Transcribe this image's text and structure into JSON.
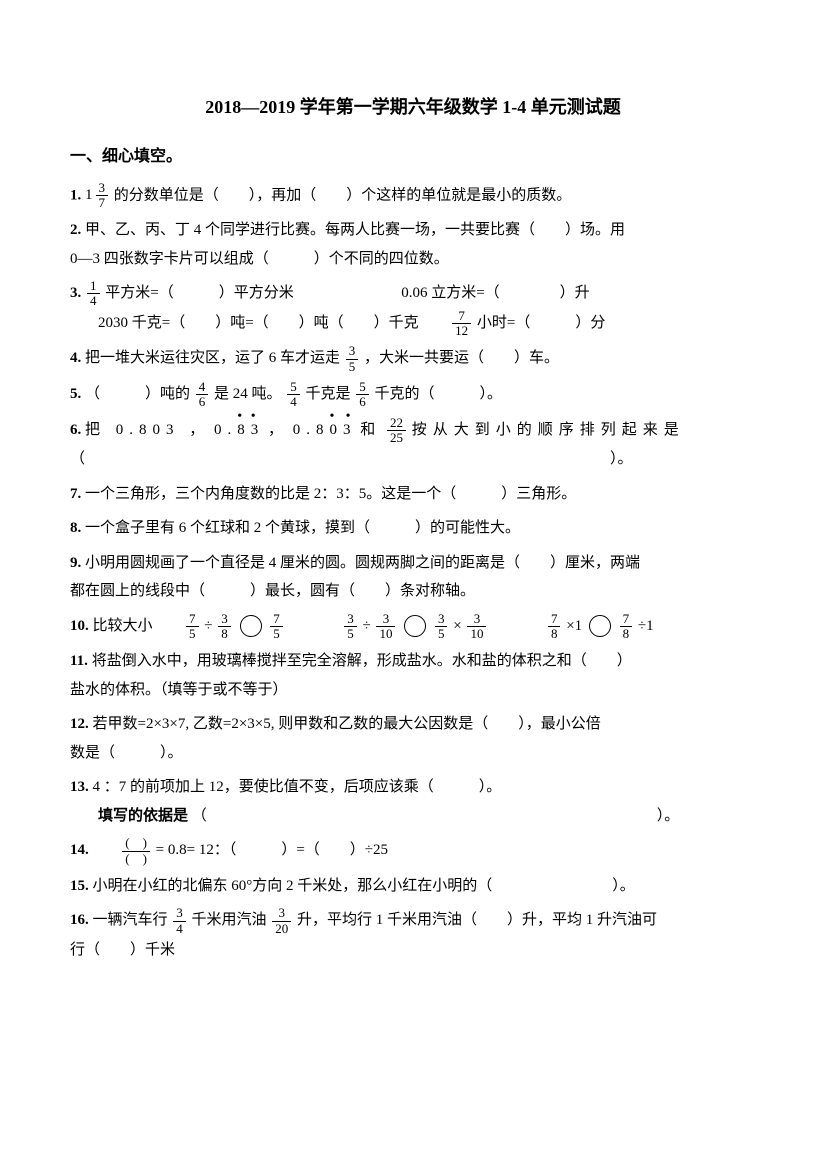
{
  "title": "2018—2019 学年第一学期六年级数学 1-4 单元测试题",
  "section1_heading": "一、细心填空。",
  "q1": {
    "num": "1.",
    "pre": " ",
    "mixed_whole": "1",
    "mixed_num": "3",
    "mixed_den": "7",
    "text": "的分数单位是（　　），再加（　　）个这样的单位就是最小的质数。"
  },
  "q2": {
    "num": "2.",
    "line1": " 甲、乙、丙、丁 4 个同学进行比赛。每两人比赛一场，一共要比赛（　　）场。用",
    "line2": "0—3 四张数字卡片可以组成（　　　）个不同的四位数。"
  },
  "q3": {
    "num": "3.",
    "f1_num": "1",
    "f1_den": "4",
    "p1": "平方米=（　　　）平方分米",
    "p2": "0.06 立方米=（　　　　）升",
    "line2_a": "2030 千克=（　　）吨=（　　）吨（　　）千克",
    "f2_num": "7",
    "f2_den": "12",
    "line2_b": "小时=（　　　）分"
  },
  "q4": {
    "num": "4.",
    "pre": " 把一堆大米运往灾区，运了 6 车才运走",
    "f_num": "3",
    "f_den": "5",
    "post": " ，大米一共要运（　　）车。"
  },
  "q5": {
    "num": "5.",
    "p1": " （　　　）吨的",
    "f1_num": "4",
    "f1_den": "6",
    "p2": "是 24 吨。",
    "f2_num": "5",
    "f2_den": "4",
    "p3": "千克是",
    "f3_num": "5",
    "f3_den": "6",
    "p4": "千克的（　　　）。"
  },
  "q6": {
    "num": "6.",
    "p1": "把 0.803 ，",
    "r1a": "0.",
    "r1b": "8",
    "r1c": "3",
    "p2": "，",
    "r2a": "0.8",
    "r2c": "03",
    "p3": "和",
    "f_num": "22",
    "f_den": "25",
    "p4": "按从大到小的顺序排列起来是",
    "line2": "（　　　　　　　　　　　　　　　　　　　　　　　　　　　　　　　　　　　）。"
  },
  "q7": {
    "num": "7.",
    "text": " 一个三角形，三个内角度数的比是 2：3：5。这是一个（　　　）三角形。"
  },
  "q8": {
    "num": "8.",
    "text": "  一个盒子里有 6 个红球和 2 个黄球，摸到（　　　）的可能性大。"
  },
  "q9": {
    "num": "9.",
    "line1": " 小明用圆规画了一个直径是 4 厘米的圆。圆规两脚之间的距离是（　　）厘米，两端",
    "line2": "都在圆上的线段中（　　　）最长，圆有（　　）条对称轴。"
  },
  "q10": {
    "num": "10.",
    "label": " 比较大小",
    "e1_a_num": "7",
    "e1_a_den": "5",
    "e1_op1": "÷",
    "e1_b_num": "3",
    "e1_b_den": "8",
    "e1_c_num": "7",
    "e1_c_den": "5",
    "e2_a_num": "3",
    "e2_a_den": "5",
    "e2_op1": "÷",
    "e2_b_num": "3",
    "e2_b_den": "10",
    "e2_c_num": "3",
    "e2_c_den": "5",
    "e2_op2": "×",
    "e2_d_num": "3",
    "e2_d_den": "10",
    "e3_a_num": "7",
    "e3_a_den": "8",
    "e3_op1": "×1",
    "e3_c_num": "7",
    "e3_c_den": "8",
    "e3_op2": "÷1"
  },
  "q11": {
    "num": "11.",
    "line1": " 将盐倒入水中，用玻璃棒搅拌至完全溶解，形成盐水。水和盐的体积之和（　　）",
    "line2": "盐水的体积。（填等于或不等于）"
  },
  "q12": {
    "num": "12.",
    "line1": " 若甲数=2×3×7, 乙数=2×3×5, 则甲数和乙数的最大公因数是（　　），最小公倍",
    "line2": "数是（　　　）。"
  },
  "q13": {
    "num": "13.",
    "line1": "  4 ：7 的前项加上 12，要使比值不变，后项应该乘（　　　）。",
    "line2_label": "填写的依据是",
    "line2_blank": "（　　　　　　　　　　　　　　　　　　　　　　　　　　　　　　）。"
  },
  "q14": {
    "num": "14.",
    "f_num": "(　)",
    "f_den": "(　)",
    "text": " = 0.8= 12：（　　　）=（　　）÷25"
  },
  "q15": {
    "num": "15.",
    "text": " 小明在小红的北偏东 60°方向 2 千米处，那么小红在小明的（　　　　　　　　）。"
  },
  "q16": {
    "num": "16.",
    "p1": "  一辆汽车行",
    "f1_num": "3",
    "f1_den": "4",
    "p2": " 千米用汽油",
    "f2_num": "3",
    "f2_den": "20",
    "p3": " 升，平均行 1 千米用汽油（　　）升，平均 1 升汽油可",
    "line2": "行（　　）千米"
  }
}
